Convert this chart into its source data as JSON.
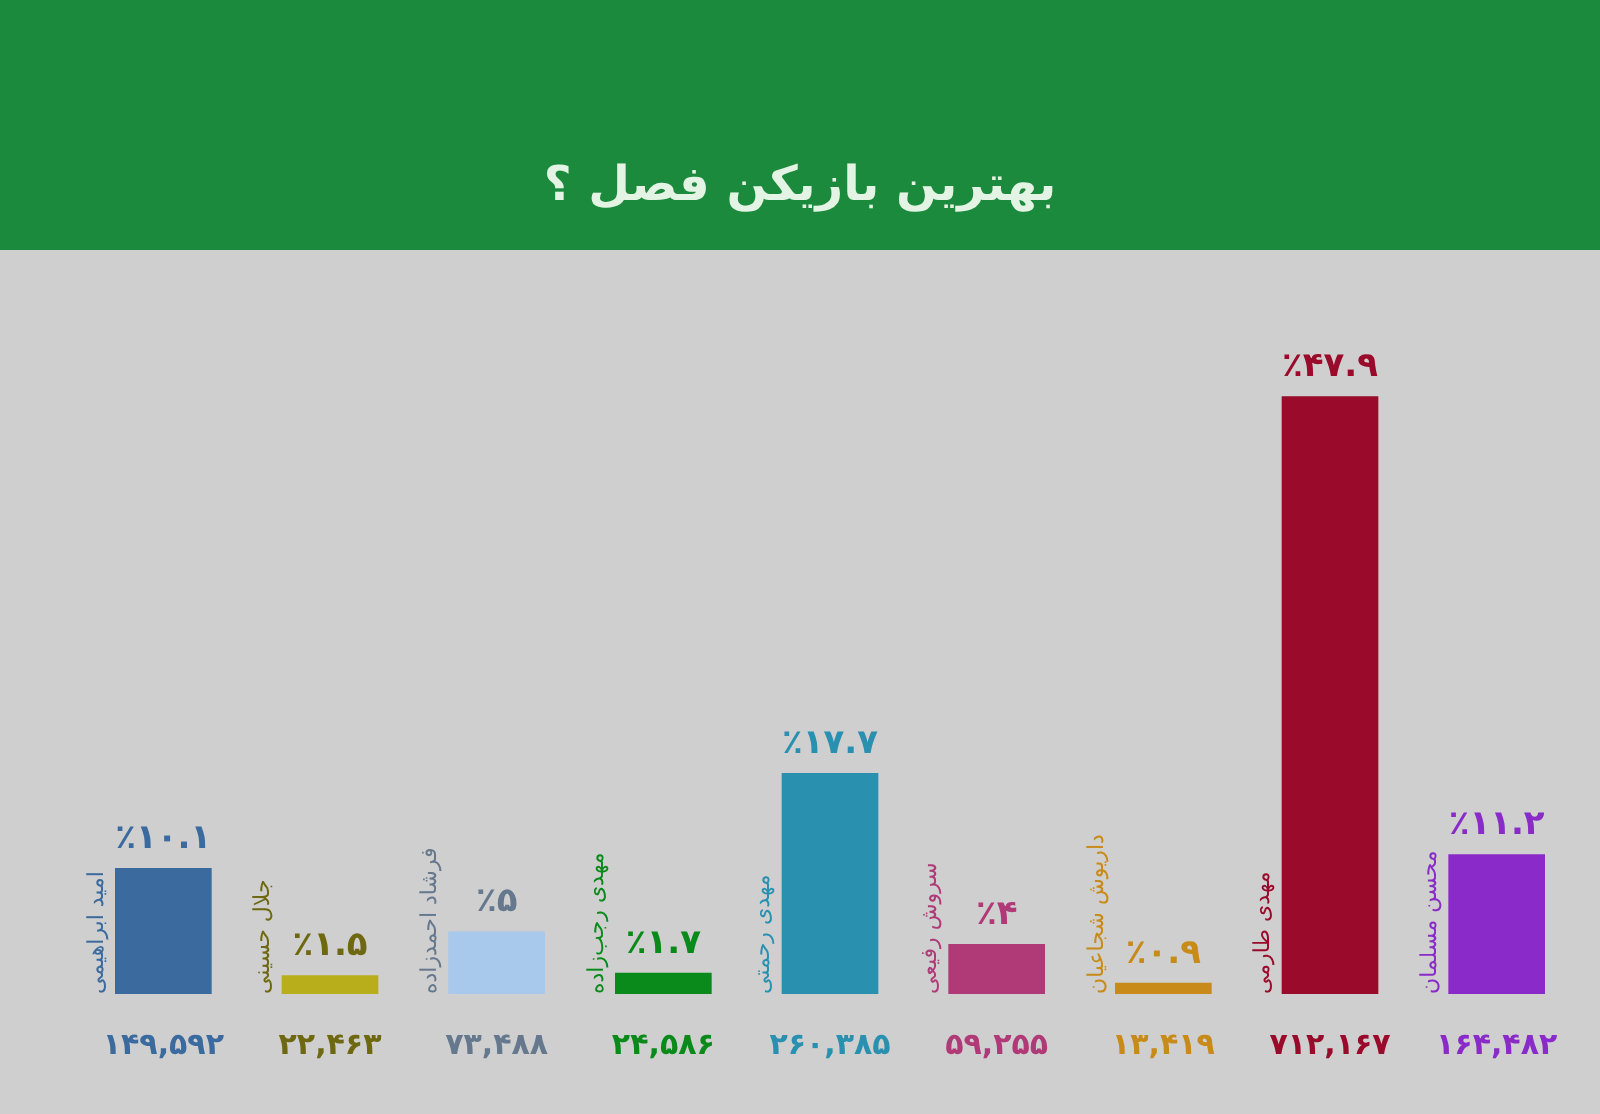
{
  "chart_data": {
    "type": "bar",
    "title": "بهترین بازیکن فصل ؟",
    "categories": [
      "امید ابراهیمی",
      "جلال حسینی",
      "فرشاد احمدزاده",
      "مهدی رجب‌زاده",
      "مهدی رحمتی",
      "سروش رفیعی",
      "داریوش شجاعیان",
      "مهدی طارمی",
      "محسن مسلمان"
    ],
    "values": [
      10.1,
      1.5,
      5,
      1.7,
      17.7,
      4,
      0.9,
      47.9,
      11.2
    ],
    "value_labels": [
      "٪۱۰.۱",
      "٪۱.۵",
      "٪۵",
      "٪۱.۷",
      "٪۱۷.۷",
      "٪۴",
      "٪۰.۹",
      "٪۴۷.۹",
      "٪۱۱.۲"
    ],
    "colors": [
      "#3a6a9e",
      "#b8ad1a",
      "#a8c8ec",
      "#0a8a1a",
      "#2a90b0",
      "#b03a78",
      "#c88a18",
      "#9a0a2a",
      "#8a2ac8"
    ],
    "annotations": [
      "۱۴۹,۵۹۲",
      "۲۲,۴۶۳",
      "۷۳,۴۸۸",
      "۲۴,۵۸۶",
      "۲۶۰,۳۸۵",
      "۵۹,۲۵۵",
      "۱۳,۴۱۹",
      "۷۱۲,۱۶۷",
      "۱۶۴,۴۸۲"
    ],
    "tick_labels": false,
    "legend": false
  }
}
